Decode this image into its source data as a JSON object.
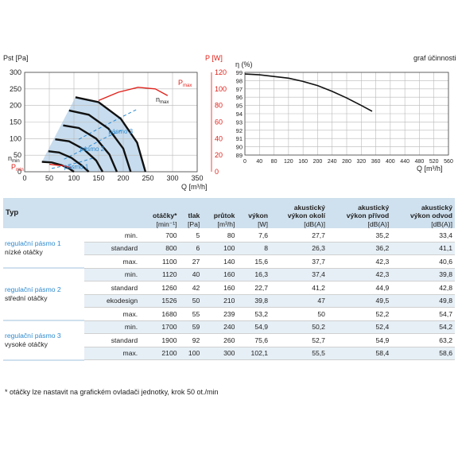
{
  "chart_data": [
    {
      "type": "line",
      "xlabel": "Q [m³/h]",
      "ylabel": "Pst [Pa]",
      "ylabel_right": "P [W]",
      "xlim": [
        0,
        350
      ],
      "ylim": [
        0,
        300
      ],
      "ylim_right": [
        0,
        120
      ],
      "xticks": [
        0,
        50,
        100,
        150,
        200,
        250,
        300,
        350
      ],
      "yticks": [
        0,
        50,
        100,
        150,
        200,
        250,
        300
      ],
      "yticks_right": [
        0,
        20,
        40,
        60,
        80,
        100,
        120
      ],
      "grid": true,
      "annotations": {
        "nmax": "n",
        "nmax_sub": "max",
        "nmin": "n",
        "nmin_sub": "min",
        "pmax": "P",
        "pmax_sub": "max",
        "pmin": "P",
        "pmin_sub": "min"
      },
      "zones": [
        {
          "name": "pásmo 1",
          "label": "pásmo 1"
        },
        {
          "name": "pásmo 2",
          "label": "pásmo 2"
        },
        {
          "name": "pásmo 3",
          "label": "pásmo 3"
        }
      ],
      "fan_curves": [
        {
          "x": [
            35,
            55,
            75,
            92,
            100
          ],
          "y": [
            30,
            28,
            20,
            8,
            0
          ]
        },
        {
          "x": [
            48,
            70,
            95,
            115,
            130
          ],
          "y": [
            62,
            58,
            42,
            20,
            0
          ]
        },
        {
          "x": [
            62,
            90,
            120,
            145,
            158
          ],
          "y": [
            98,
            92,
            68,
            34,
            0
          ]
        },
        {
          "x": [
            78,
            110,
            145,
            172,
            187
          ],
          "y": [
            140,
            132,
            100,
            52,
            0
          ]
        },
        {
          "x": [
            90,
            130,
            170,
            200,
            215
          ],
          "y": [
            185,
            172,
            130,
            70,
            0
          ]
        },
        {
          "x": [
            103,
            150,
            195,
            228,
            245
          ],
          "y": [
            225,
            210,
            160,
            88,
            0
          ]
        }
      ],
      "dashed_curves": [
        {
          "x": [
            55,
            80,
            110,
            140
          ],
          "y": [
            10,
            18,
            28,
            42
          ]
        },
        {
          "x": [
            80,
            120,
            160,
            200
          ],
          "y": [
            38,
            68,
            100,
            128
          ]
        },
        {
          "x": [
            110,
            150,
            190,
            230
          ],
          "y": [
            98,
            130,
            160,
            190
          ]
        }
      ],
      "power_curves": [
        {
          "name": "P max",
          "x": [
            150,
            190,
            230,
            265,
            290
          ],
          "y": [
            86,
            96,
            102,
            100,
            92
          ]
        },
        {
          "name": "P min",
          "x": [
            50,
            65,
            80,
            95
          ],
          "y": [
            9,
            8,
            7,
            5
          ]
        }
      ]
    },
    {
      "type": "line",
      "title": "graf účinnosti",
      "xlabel": "Q [m³/h]",
      "ylabel": "η (%)",
      "xlim": [
        0,
        560
      ],
      "ylim": [
        89,
        99
      ],
      "xticks": [
        0,
        40,
        80,
        120,
        160,
        200,
        240,
        280,
        320,
        360,
        400,
        440,
        480,
        520,
        560
      ],
      "yticks": [
        89,
        90,
        91,
        92,
        93,
        94,
        95,
        96,
        97,
        98,
        99
      ],
      "grid": true,
      "series": [
        {
          "x": [
            0,
            40,
            80,
            120,
            160,
            200,
            240,
            280,
            320,
            350
          ],
          "y": [
            98.8,
            98.7,
            98.5,
            98.3,
            97.9,
            97.4,
            96.7,
            95.9,
            95.0,
            94.3
          ]
        }
      ]
    }
  ],
  "table": {
    "header": {
      "typ": "Typ",
      "otacky": "otáčky*",
      "otacky_u": "[min⁻¹]",
      "tlak": "tlak",
      "tlak_u": "[Pa]",
      "prutok": "průtok",
      "prutok_u": "[m³/h]",
      "vykon": "výkon",
      "vykon_u": "[W]",
      "ak1a": "akustický",
      "ak1b": "výkon okolí",
      "ak1_u": "[dB(A)]",
      "ak2a": "akustický",
      "ak2b": "výkon přívod",
      "ak2_u": "[dB(A)]",
      "ak3a": "akustický",
      "ak3b": "výkon odvod",
      "ak3_u": "[dB(A)]"
    },
    "groups": [
      {
        "name": "regulační pásmo 1",
        "desc": "nízké otáčky"
      },
      {
        "name": "regulační pásmo 2",
        "desc": "střední otáčky"
      },
      {
        "name": "regulační pásmo 3",
        "desc": "vysoké otáčky"
      }
    ],
    "rows": [
      [
        "min.",
        "700",
        "5",
        "80",
        "7,6",
        "27,7",
        "35,2",
        "33,4"
      ],
      [
        "standard",
        "800",
        "6",
        "100",
        "8",
        "26,3",
        "36,2",
        "41,1"
      ],
      [
        "max.",
        "1100",
        "27",
        "140",
        "15,6",
        "37,7",
        "42,3",
        "40,6"
      ],
      [
        "min.",
        "1120",
        "40",
        "160",
        "16,3",
        "37,4",
        "42,3",
        "39,8"
      ],
      [
        "standard",
        "1260",
        "42",
        "160",
        "22,7",
        "41,2",
        "44,9",
        "42,8"
      ],
      [
        "ekodesign",
        "1526",
        "50",
        "210",
        "39,8",
        "47",
        "49,5",
        "49,8"
      ],
      [
        "max.",
        "1680",
        "55",
        "239",
        "53,2",
        "50",
        "52,2",
        "54,7"
      ],
      [
        "min.",
        "1700",
        "59",
        "240",
        "54,9",
        "50,2",
        "52,4",
        "54,2"
      ],
      [
        "standard",
        "1900",
        "92",
        "260",
        "75,6",
        "52,7",
        "54,9",
        "63,2"
      ],
      [
        "max.",
        "2100",
        "100",
        "300",
        "102,1",
        "55,5",
        "58,4",
        "58,6"
      ]
    ]
  },
  "footnote": "* otáčky lze nastavit na grafickém ovladači jednotky, krok 50 ot./min",
  "colors": {
    "red": "#e0221b",
    "blue": "#2e8bd0",
    "zone": "#c7dcee",
    "header": "#cfe0ee"
  }
}
